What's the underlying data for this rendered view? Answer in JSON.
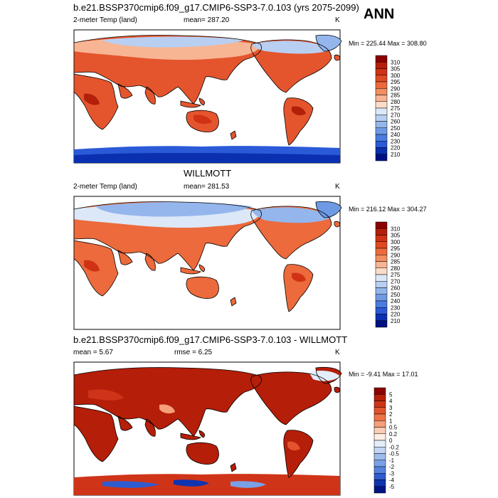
{
  "header": {
    "season": "ANN"
  },
  "chart_data": [
    {
      "type": "heatmap",
      "title": "b.e21.BSSP370cmip6.f09_g17.CMIP6-SSP3-7.0.103 (yrs 2075-2099)",
      "variable": "2-meter Temp (land)",
      "stat_label": "mean= 287.20",
      "units": "K",
      "minmax": "Min = 225.44 Max = 308.80",
      "colorbar": {
        "levels": [
          "310",
          "305",
          "300",
          "295",
          "290",
          "285",
          "280",
          "275",
          "270",
          "260",
          "250",
          "240",
          "230",
          "220",
          "210"
        ],
        "colors": [
          "#8b0000",
          "#b3200a",
          "#d03214",
          "#e04a22",
          "#ec6a3c",
          "#f28e60",
          "#f7b594",
          "#fbdcc8",
          "#dce8f8",
          "#b8cff2",
          "#94b6ec",
          "#6e9ae4",
          "#4a7ce0",
          "#2a5ad8",
          "#0a30b0",
          "#001080"
        ]
      },
      "map": {
        "projection": "cylindrical equidistant",
        "center_longitude": 180,
        "dominant_palette": "warm land, cold polar regions"
      }
    },
    {
      "type": "heatmap",
      "title": "WILLMOTT",
      "variable": "2-meter Temp (land)",
      "stat_label": "mean= 281.53",
      "units": "K",
      "minmax": "Min = 216.12 Max = 304.27",
      "colorbar": {
        "levels": [
          "310",
          "305",
          "300",
          "295",
          "290",
          "285",
          "280",
          "275",
          "270",
          "260",
          "250",
          "240",
          "230",
          "220",
          "210"
        ],
        "colors": [
          "#8b0000",
          "#b3200a",
          "#d03214",
          "#e04a22",
          "#ec6a3c",
          "#f28e60",
          "#f7b594",
          "#fbdcc8",
          "#dce8f8",
          "#b8cff2",
          "#94b6ec",
          "#6e9ae4",
          "#4a7ce0",
          "#2a5ad8",
          "#0a30b0",
          "#001080"
        ]
      },
      "map": {
        "projection": "cylindrical equidistant",
        "center_longitude": 180,
        "dominant_palette": "warm land, cold polar regions"
      }
    },
    {
      "type": "heatmap",
      "title": "b.e21.BSSP370cmip6.f09_g17.CMIP6-SSP3-7.0.103 - WILLMOTT",
      "mean_label": "mean =   5.67",
      "rmse_label": "rmse =   6.25",
      "units": "K",
      "minmax": "Min =  -9.41 Max =  17.01",
      "colorbar": {
        "levels": [
          "5",
          "4",
          "3",
          "2",
          "1",
          "0.5",
          "0.2",
          "0",
          "-0.2",
          "-0.5",
          "-1",
          "-2",
          "-3",
          "-4",
          "-5"
        ],
        "colors": [
          "#8b0000",
          "#b51e08",
          "#cf3418",
          "#e2522c",
          "#ee7447",
          "#f5a07a",
          "#fbcdb4",
          "#fdeee4",
          "#e4eefa",
          "#c2d6f4",
          "#9cbcee",
          "#7aa0e6",
          "#5682dc",
          "#2e5cd0",
          "#0e34b0",
          "#001484"
        ]
      },
      "map": {
        "projection": "cylindrical equidistant",
        "center_longitude": 180,
        "dominant_palette": "mostly positive (warm) differences, cold bias in Antarctica"
      }
    }
  ]
}
